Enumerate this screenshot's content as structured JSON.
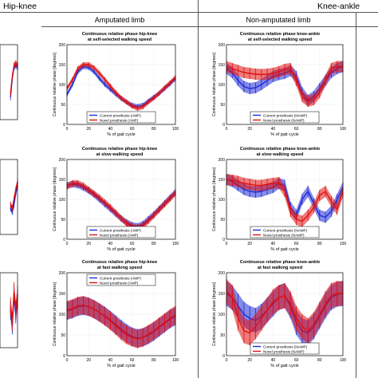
{
  "header": {
    "hip_knee": "Hip-knee",
    "knee_ankle": "Knee-ankle",
    "amputated_limb": "Amputated limb",
    "non_amputated_limb": "Non-amputated limb"
  },
  "colors": {
    "current": "#1f2bd6",
    "novel": "#e01010",
    "grid": "#dddddd"
  },
  "panel_titles": {
    "amp_ss": [
      "Continuous relative phase hip-knee",
      "at self-selected walking speed"
    ],
    "amp_slow": [
      "Continuous relative phase hip-knee",
      "at slow walking speed"
    ],
    "amp_fast": [
      "Continuous relative phase hip-knee",
      "at fast walking speed"
    ],
    "namp_ss": [
      "Continuous relative phase knee-ankle",
      "at self-selected walking speed"
    ],
    "namp_slow": [
      "Continuous relative phase knee-ankle",
      "at slow walking speed"
    ],
    "namp_fast": [
      "Continuous relative phase knee-ankle",
      "at fast walking speed"
    ]
  },
  "chart_data": [
    {
      "id": "amp_ss",
      "type": "line",
      "xlabel": "% of gait cycle",
      "ylabel": "Continuous relative phase [degrees]",
      "xlim": [
        0,
        100
      ],
      "ylim": [
        0,
        200
      ],
      "xticks": [
        "0",
        "20",
        "40",
        "60",
        "80",
        "100"
      ],
      "yticks": [
        "0",
        "50",
        "100",
        "150",
        "200"
      ],
      "legend": [
        "Current prosthesis (AMP)",
        "Novel prosthesis (AMP)"
      ],
      "legend_position": "bottom",
      "x": [
        0,
        5,
        10,
        15,
        20,
        25,
        30,
        35,
        40,
        45,
        50,
        55,
        60,
        65,
        70,
        75,
        80,
        85,
        90,
        95,
        100
      ],
      "series": [
        {
          "name": "Current prosthesis (AMP)",
          "values": [
            75,
            100,
            132,
            145,
            143,
            132,
            115,
            100,
            88,
            76,
            65,
            56,
            48,
            45,
            48,
            58,
            68,
            78,
            90,
            102,
            115
          ],
          "error": 6
        },
        {
          "name": "Novel prosthesis (AMP)",
          "values": [
            90,
            112,
            140,
            150,
            150,
            142,
            128,
            112,
            96,
            80,
            66,
            56,
            46,
            40,
            44,
            56,
            66,
            78,
            92,
            104,
            118
          ],
          "error": 6
        }
      ]
    },
    {
      "id": "amp_slow",
      "type": "line",
      "xlabel": "% of gait cycle",
      "ylabel": "Continuous relative phase [degrees]",
      "xlim": [
        0,
        100
      ],
      "ylim": [
        0,
        200
      ],
      "xticks": [
        "0",
        "20",
        "40",
        "60",
        "80",
        "100"
      ],
      "yticks": [
        "0",
        "50",
        "100",
        "150",
        "200"
      ],
      "legend": [
        "Current prosthesis (AMP)",
        "Novel prosthesis (AMP)"
      ],
      "legend_position": "bottom",
      "x": [
        0,
        5,
        10,
        15,
        20,
        25,
        30,
        35,
        40,
        45,
        50,
        55,
        60,
        65,
        70,
        75,
        80,
        85,
        90,
        95,
        100
      ],
      "series": [
        {
          "name": "Current prosthesis (AMP)",
          "values": [
            135,
            138,
            136,
            130,
            122,
            112,
            100,
            88,
            76,
            64,
            52,
            42,
            35,
            32,
            38,
            50,
            62,
            76,
            90,
            104,
            118
          ],
          "error": 8
        },
        {
          "name": "Novel prosthesis (AMP)",
          "values": [
            132,
            140,
            140,
            134,
            124,
            114,
            104,
            92,
            80,
            66,
            52,
            40,
            32,
            28,
            34,
            46,
            60,
            74,
            88,
            102,
            116
          ],
          "error": 8
        }
      ]
    },
    {
      "id": "amp_fast",
      "type": "line",
      "xlabel": "% of gait cycle",
      "ylabel": "Continuous relative phase [degrees]",
      "xlim": [
        0,
        100
      ],
      "ylim": [
        0,
        200
      ],
      "xticks": [
        "0",
        "20",
        "40",
        "60",
        "80",
        "100"
      ],
      "yticks": [
        "0",
        "50",
        "100",
        "150",
        "200"
      ],
      "legend": [
        "Current prosthesis (AMP)",
        "Novel prosthesis (AMP)"
      ],
      "legend_position": "top",
      "x": [
        0,
        5,
        10,
        15,
        20,
        25,
        30,
        35,
        40,
        45,
        50,
        55,
        60,
        65,
        70,
        75,
        80,
        85,
        90,
        95,
        100
      ],
      "series": [
        {
          "name": "Current prosthesis (AMP)",
          "values": [
            108,
            112,
            118,
            120,
            118,
            112,
            104,
            96,
            86,
            75,
            64,
            54,
            46,
            42,
            44,
            50,
            58,
            68,
            78,
            88,
            95
          ],
          "error": 22
        },
        {
          "name": "Novel prosthesis (AMP)",
          "values": [
            110,
            114,
            120,
            122,
            118,
            112,
            104,
            94,
            84,
            72,
            60,
            50,
            44,
            40,
            44,
            52,
            60,
            70,
            80,
            90,
            98
          ],
          "error": 22
        }
      ]
    },
    {
      "id": "namp_ss",
      "type": "line",
      "xlabel": "% of gait cycle",
      "ylabel": "Continuous relative phase [degrees]",
      "xlim": [
        0,
        100
      ],
      "ylim": [
        0,
        200
      ],
      "xticks": [
        "0",
        "20",
        "40",
        "60",
        "80",
        "100"
      ],
      "yticks": [
        "0",
        "50",
        "100",
        "150",
        "200"
      ],
      "legend": [
        "Current prosthesis (NAMP)",
        "Novel prosthesis (NAMP)"
      ],
      "legend_position": "bottom",
      "x": [
        0,
        5,
        10,
        15,
        20,
        25,
        30,
        35,
        40,
        45,
        50,
        55,
        60,
        65,
        70,
        75,
        80,
        85,
        90,
        95,
        100
      ],
      "series": [
        {
          "name": "Current prosthesis (NAMP)",
          "values": [
            140,
            130,
            110,
            95,
            90,
            92,
            100,
            110,
            120,
            125,
            128,
            135,
            120,
            80,
            60,
            70,
            90,
            110,
            130,
            140,
            145
          ],
          "error": 14
        },
        {
          "name": "Novel prosthesis (NAMP)",
          "values": [
            145,
            140,
            135,
            130,
            128,
            126,
            125,
            126,
            128,
            132,
            138,
            140,
            110,
            70,
            58,
            62,
            80,
            110,
            140,
            145,
            145
          ],
          "error": 14
        }
      ]
    },
    {
      "id": "namp_slow",
      "type": "line",
      "xlabel": "% of gait cycle",
      "ylabel": "Continuous relative phase [degrees]",
      "xlim": [
        0,
        100
      ],
      "ylim": [
        0,
        200
      ],
      "xticks": [
        "0",
        "20",
        "40",
        "60",
        "80",
        "100"
      ],
      "yticks": [
        "0",
        "50",
        "100",
        "150",
        "200"
      ],
      "legend": [
        "Current prosthesis (NAMP)",
        "Novel prosthesis (NAMP)"
      ],
      "legend_position": "bottom",
      "x": [
        0,
        5,
        10,
        15,
        20,
        25,
        30,
        35,
        40,
        45,
        50,
        55,
        60,
        65,
        70,
        75,
        80,
        85,
        90,
        95,
        100
      ],
      "series": [
        {
          "name": "Current prosthesis (NAMP)",
          "values": [
            150,
            145,
            135,
            125,
            120,
            118,
            120,
            125,
            130,
            140,
            135,
            80,
            60,
            100,
            120,
            90,
            60,
            55,
            70,
            100,
            130
          ],
          "error": 14
        },
        {
          "name": "Novel prosthesis (NAMP)",
          "values": [
            150,
            148,
            145,
            140,
            138,
            135,
            135,
            138,
            140,
            142,
            120,
            70,
            50,
            45,
            60,
            80,
            110,
            120,
            95,
            75,
            120
          ],
          "error": 14
        }
      ]
    },
    {
      "id": "namp_fast",
      "type": "line",
      "xlabel": "% of gait cycle",
      "ylabel": "Continuous relative phase [degrees]",
      "xlim": [
        0,
        100
      ],
      "ylim": [
        0,
        200
      ],
      "xticks": [
        "0",
        "20",
        "40",
        "60",
        "80",
        "100"
      ],
      "yticks": [
        "0",
        "50",
        "100",
        "150",
        "200"
      ],
      "legend": [
        "Current prosthesis (NAMP)",
        "Novel prosthesis (NAMP)"
      ],
      "legend_position": "bottom",
      "x": [
        0,
        5,
        10,
        15,
        20,
        25,
        30,
        35,
        40,
        45,
        50,
        55,
        60,
        65,
        70,
        75,
        80,
        85,
        90,
        95,
        100
      ],
      "series": [
        {
          "name": "Current prosthesis (NAMP)",
          "values": [
            150,
            140,
            120,
            100,
            90,
            85,
            95,
            110,
            125,
            140,
            145,
            120,
            80,
            60,
            55,
            70,
            95,
            120,
            140,
            148,
            150
          ],
          "error": 30
        },
        {
          "name": "Novel prosthesis (NAMP)",
          "values": [
            155,
            140,
            90,
            60,
            55,
            70,
            90,
            110,
            130,
            140,
            145,
            125,
            90,
            70,
            60,
            75,
            100,
            125,
            145,
            150,
            150
          ],
          "error": 30
        }
      ]
    },
    {
      "id": "left_edge_1",
      "type": "line",
      "partial": true,
      "xlim": [
        0,
        100
      ],
      "ylim": [
        0,
        200
      ],
      "x": [
        60,
        70,
        80,
        90,
        100
      ],
      "series": [
        {
          "values": [
            60,
            110,
            140,
            145,
            140
          ],
          "error": 8
        },
        {
          "values": [
            70,
            115,
            145,
            150,
            145
          ],
          "error": 8
        }
      ]
    },
    {
      "id": "left_edge_2",
      "type": "line",
      "partial": true,
      "xlim": [
        0,
        100
      ],
      "ylim": [
        0,
        200
      ],
      "x": [
        60,
        70,
        80,
        90,
        100
      ],
      "series": [
        {
          "values": [
            70,
            60,
            80,
            110,
            130
          ],
          "error": 8
        },
        {
          "values": [
            80,
            70,
            95,
            120,
            140
          ],
          "error": 8
        }
      ]
    },
    {
      "id": "left_edge_3",
      "type": "line",
      "partial": true,
      "xlim": [
        0,
        100
      ],
      "ylim": [
        0,
        200
      ],
      "x": [
        60,
        70,
        80,
        90,
        100
      ],
      "series": [
        {
          "values": [
            100,
            60,
            140,
            90,
            130
          ],
          "error": 25
        },
        {
          "values": [
            110,
            70,
            150,
            100,
            140
          ],
          "error": 25
        }
      ]
    }
  ]
}
